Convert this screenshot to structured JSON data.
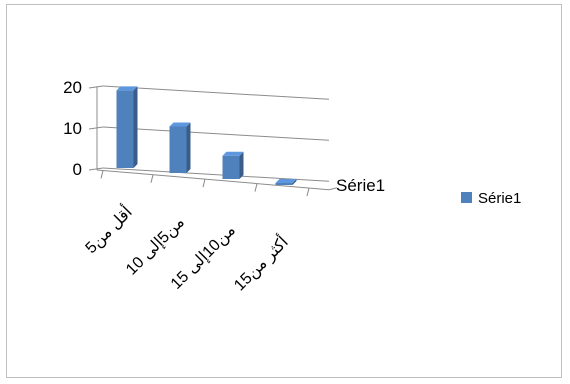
{
  "chart_data": {
    "type": "bar",
    "style": "3d-column",
    "categories": [
      "أقل من5",
      "من5إلى 10",
      "من10إلى 15",
      "أكثر من15"
    ],
    "series": [
      {
        "name": "Série1",
        "values": [
          20,
          12,
          6,
          0.5
        ],
        "color": "#4f81bd"
      }
    ],
    "series_axis_label": "Série1",
    "yticks": [
      "0",
      "10",
      "20"
    ],
    "ylim": [
      0,
      22
    ],
    "grid": true,
    "legend": {
      "position": "right",
      "entries": [
        "Série1"
      ]
    }
  }
}
